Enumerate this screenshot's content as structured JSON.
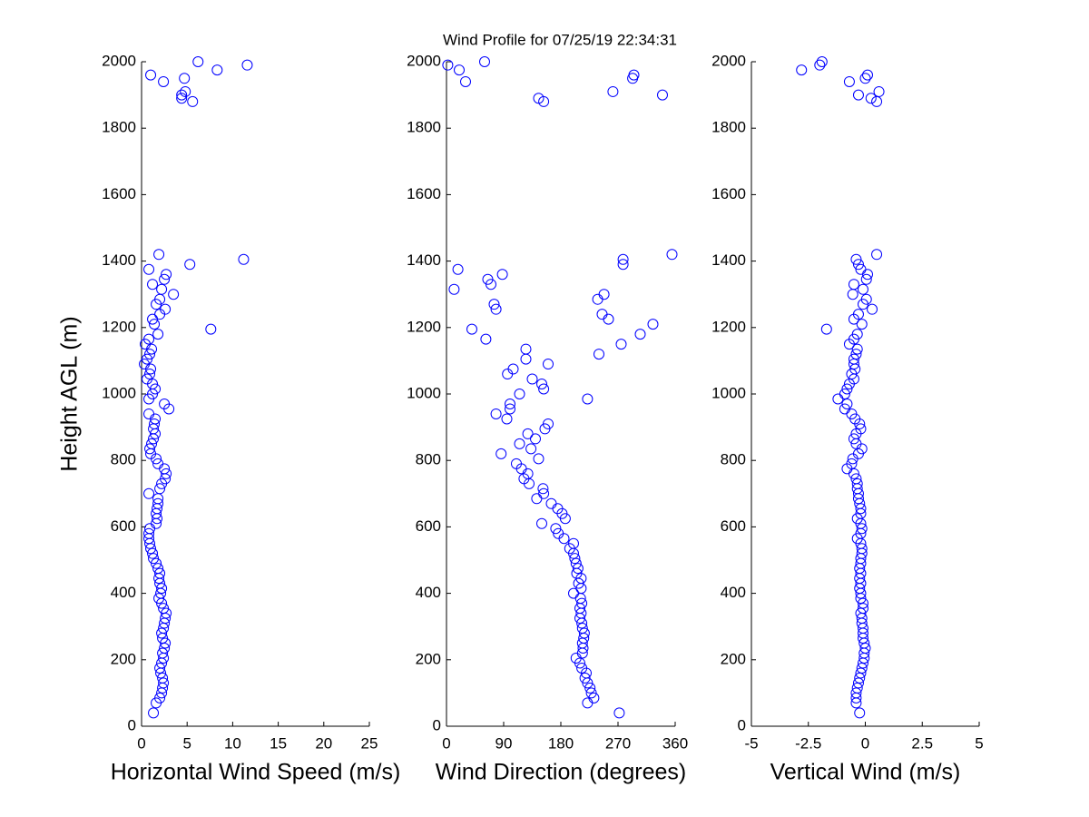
{
  "title": "Wind Profile for  07/25/19 22:34:31",
  "chart_data": [
    {
      "type": "scatter",
      "xlabel": "Horizontal Wind Speed (m/s)",
      "ylabel": "Height AGL (m)",
      "color": "#0000ff",
      "xlim": [
        0,
        25
      ],
      "xticks": [
        0,
        5,
        10,
        15,
        20,
        25
      ],
      "ylim": [
        0,
        2000
      ],
      "yticks": [
        0,
        200,
        400,
        600,
        800,
        1000,
        1200,
        1400,
        1600,
        1800,
        2000
      ],
      "x": [
        1.3,
        1.6,
        2.0,
        2.2,
        2.3,
        2.4,
        2.3,
        2.1,
        2.0,
        2.2,
        2.4,
        2.3,
        2.5,
        2.6,
        2.3,
        2.2,
        2.4,
        2.5,
        2.6,
        2.7,
        2.4,
        2.2,
        1.9,
        2.1,
        2.2,
        2.0,
        1.9,
        2.0,
        1.8,
        1.6,
        1.3,
        1.2,
        1.0,
        0.9,
        0.8,
        0.8,
        0.9,
        1.6,
        1.7,
        1.6,
        1.7,
        1.8,
        1.8,
        0.8,
        2.0,
        2.2,
        2.6,
        2.7,
        2.5,
        1.8,
        1.6,
        1.0,
        0.9,
        1.1,
        1.3,
        1.5,
        1.3,
        1.4,
        1.5,
        0.8,
        3.0,
        2.5,
        0.8,
        1.2,
        1.5,
        1.2,
        0.6,
        0.9,
        1.0,
        0.3,
        0.6,
        0.9,
        1.1,
        0.4,
        0.8,
        1.8,
        7.6,
        1.4,
        1.2,
        2.0,
        2.6,
        1.6,
        2.0,
        3.5,
        2.2,
        1.2,
        2.5,
        2.7,
        0.8,
        5.3,
        11.2,
        1.9,
        5.6,
        4.4,
        4.4,
        4.8,
        2.4,
        4.7,
        1.0,
        8.3,
        11.6,
        6.2
      ],
      "y": [
        40,
        70,
        85,
        100,
        115,
        130,
        145,
        160,
        175,
        190,
        205,
        220,
        235,
        250,
        265,
        280,
        295,
        310,
        325,
        340,
        355,
        370,
        385,
        400,
        415,
        430,
        445,
        460,
        475,
        490,
        505,
        520,
        535,
        550,
        565,
        580,
        595,
        610,
        625,
        640,
        655,
        670,
        685,
        700,
        715,
        730,
        745,
        760,
        775,
        790,
        805,
        820,
        835,
        850,
        865,
        880,
        895,
        910,
        925,
        940,
        955,
        970,
        985,
        1000,
        1015,
        1030,
        1045,
        1060,
        1075,
        1090,
        1105,
        1120,
        1135,
        1150,
        1165,
        1180,
        1195,
        1210,
        1225,
        1240,
        1255,
        1270,
        1285,
        1300,
        1315,
        1330,
        1345,
        1360,
        1375,
        1390,
        1405,
        1420,
        1880,
        1890,
        1900,
        1910,
        1940,
        1950,
        1960,
        1975,
        1990,
        2000
      ]
    },
    {
      "type": "scatter",
      "xlabel": "Wind Direction (degrees)",
      "color": "#0000ff",
      "xlim": [
        0,
        360
      ],
      "xticks": [
        0,
        90,
        180,
        270,
        360
      ],
      "ylim": [
        0,
        2000
      ],
      "yticks": [
        0,
        200,
        400,
        600,
        800,
        1000,
        1200,
        1400,
        1600,
        1800,
        2000
      ],
      "x": [
        272,
        222,
        232,
        228,
        226,
        222,
        218,
        220,
        213,
        210,
        204,
        214,
        215,
        214,
        216,
        217,
        214,
        213,
        210,
        212,
        210,
        213,
        211,
        200,
        212,
        208,
        212,
        205,
        207,
        204,
        202,
        200,
        194,
        200,
        185,
        176,
        172,
        150,
        187,
        182,
        175,
        165,
        142,
        153,
        152,
        130,
        122,
        128,
        118,
        110,
        145,
        86,
        133,
        115,
        140,
        128,
        155,
        160,
        95,
        78,
        100,
        100,
        222,
        115,
        153,
        150,
        135,
        96,
        105,
        160,
        125,
        240,
        125,
        275,
        62,
        305,
        40,
        325,
        255,
        245,
        78,
        75,
        238,
        248,
        12,
        70,
        65,
        88,
        18,
        278,
        278,
        355,
        153,
        145,
        340,
        262,
        30,
        293,
        295,
        20,
        2,
        60
      ],
      "y": [
        40,
        70,
        85,
        100,
        115,
        130,
        145,
        160,
        175,
        190,
        205,
        220,
        235,
        250,
        265,
        280,
        295,
        310,
        325,
        340,
        355,
        370,
        385,
        400,
        415,
        430,
        445,
        460,
        475,
        490,
        505,
        520,
        535,
        550,
        565,
        580,
        595,
        610,
        625,
        640,
        655,
        670,
        685,
        700,
        715,
        730,
        745,
        760,
        775,
        790,
        805,
        820,
        835,
        850,
        865,
        880,
        895,
        910,
        925,
        940,
        955,
        970,
        985,
        1000,
        1015,
        1030,
        1045,
        1060,
        1075,
        1090,
        1105,
        1120,
        1135,
        1150,
        1165,
        1180,
        1195,
        1210,
        1225,
        1240,
        1255,
        1270,
        1285,
        1300,
        1315,
        1330,
        1345,
        1360,
        1375,
        1390,
        1405,
        1420,
        1880,
        1890,
        1900,
        1910,
        1940,
        1950,
        1960,
        1975,
        1990,
        2000
      ]
    },
    {
      "type": "scatter",
      "xlabel": "Vertical Wind (m/s)",
      "color": "#0000ff",
      "xlim": [
        -5,
        5
      ],
      "xticks": [
        -5,
        -2.5,
        0,
        2.5,
        5
      ],
      "ylim": [
        0,
        2000
      ],
      "yticks": [
        0,
        200,
        400,
        600,
        800,
        1000,
        1200,
        1400,
        1600,
        1800,
        2000
      ],
      "x": [
        -0.25,
        -0.4,
        -0.4,
        -0.4,
        -0.35,
        -0.3,
        -0.25,
        -0.2,
        -0.15,
        -0.1,
        -0.05,
        -0.05,
        0,
        -0.05,
        -0.1,
        -0.1,
        -0.1,
        -0.15,
        -0.15,
        -0.2,
        -0.1,
        -0.1,
        -0.2,
        -0.2,
        -0.25,
        -0.2,
        -0.25,
        -0.2,
        -0.25,
        -0.2,
        -0.2,
        -0.15,
        -0.15,
        -0.2,
        -0.35,
        -0.2,
        -0.15,
        -0.2,
        -0.35,
        -0.2,
        -0.2,
        -0.25,
        -0.3,
        -0.3,
        -0.35,
        -0.35,
        -0.4,
        -0.5,
        -0.8,
        -0.6,
        -0.55,
        -0.3,
        -0.15,
        -0.4,
        -0.5,
        -0.4,
        -0.2,
        -0.25,
        -0.45,
        -0.6,
        -0.9,
        -0.8,
        -1.2,
        -0.9,
        -0.8,
        -0.7,
        -0.5,
        -0.6,
        -0.45,
        -0.5,
        -0.5,
        -0.4,
        -0.35,
        -0.7,
        -0.5,
        -0.35,
        -1.7,
        -0.15,
        -0.5,
        -0.3,
        0.3,
        -0.1,
        0.05,
        -0.55,
        -0.1,
        -0.5,
        0.05,
        0.1,
        -0.2,
        -0.3,
        -0.4,
        0.5,
        0.5,
        0.25,
        -0.3,
        0.6,
        -0.7,
        0,
        0.1,
        -2.8,
        -2.0,
        -1.9
      ],
      "y": [
        40,
        70,
        85,
        100,
        115,
        130,
        145,
        160,
        175,
        190,
        205,
        220,
        235,
        250,
        265,
        280,
        295,
        310,
        325,
        340,
        355,
        370,
        385,
        400,
        415,
        430,
        445,
        460,
        475,
        490,
        505,
        520,
        535,
        550,
        565,
        580,
        595,
        610,
        625,
        640,
        655,
        670,
        685,
        700,
        715,
        730,
        745,
        760,
        775,
        790,
        805,
        820,
        835,
        850,
        865,
        880,
        895,
        910,
        925,
        940,
        955,
        970,
        985,
        1000,
        1015,
        1030,
        1045,
        1060,
        1075,
        1090,
        1105,
        1120,
        1135,
        1150,
        1165,
        1180,
        1195,
        1210,
        1225,
        1240,
        1255,
        1270,
        1285,
        1300,
        1315,
        1330,
        1345,
        1360,
        1375,
        1390,
        1405,
        1420,
        1880,
        1890,
        1900,
        1910,
        1940,
        1950,
        1960,
        1975,
        1990,
        2000
      ]
    }
  ]
}
